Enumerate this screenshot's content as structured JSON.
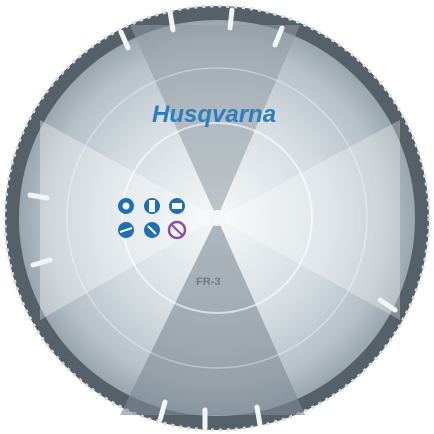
{
  "blade": {
    "brand": "Husqvarna",
    "model": "FR-3",
    "brand_color": "#2a7fc0",
    "segment_color": "#3d4650",
    "steel_color": "#a9b4bc",
    "icon_blue": "#1f6fb2",
    "icon_purple": "#8a4f9e"
  },
  "icons": {
    "row1": [
      "concrete-icon",
      "rebar-icon",
      "brick-icon"
    ],
    "row2": [
      "asphalt-icon",
      "stone-icon",
      "no-wet-cut-icon"
    ]
  }
}
